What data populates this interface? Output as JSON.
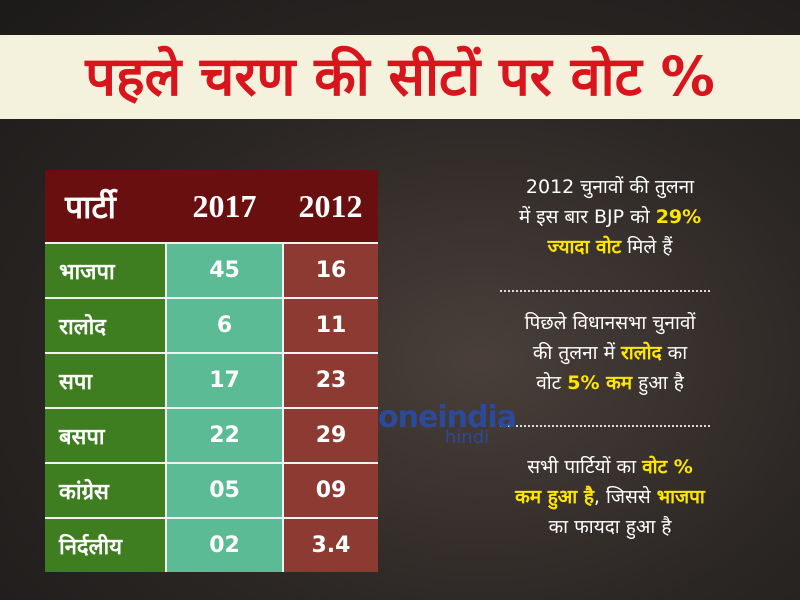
{
  "header": {
    "title": "पहले चरण की सीटों पर वोट %"
  },
  "table": {
    "columns": [
      "पार्टी",
      "2017",
      "2012"
    ],
    "rows": [
      [
        "भाजपा",
        "45",
        "16"
      ],
      [
        "रालोद",
        "6",
        "11"
      ],
      [
        "सपा",
        "17",
        "23"
      ],
      [
        "बसपा",
        "22",
        "29"
      ],
      [
        "कांग्रेस",
        "05",
        "09"
      ],
      [
        "निर्दलीय",
        "02",
        "3.4"
      ]
    ]
  },
  "notes": [
    [
      "2012 चुनावों की तुलना",
      "में इस बार BJP को ",
      "29%",
      "ज्यादा वोट",
      " मिले हैं"
    ],
    [
      "पिछले विधानसभा चुनावों",
      "की तुलना में ",
      "रालोद",
      " का",
      "वोट ",
      "5% कम",
      " हुआ है"
    ],
    [
      "सभी पार्टियों का ",
      "वोट %",
      "कम हुआ है",
      ", जिससे ",
      "भाजपा",
      "का फायदा हुआ है"
    ]
  ],
  "logo": {
    "name": "oneindia",
    "sub": "hindi"
  }
}
